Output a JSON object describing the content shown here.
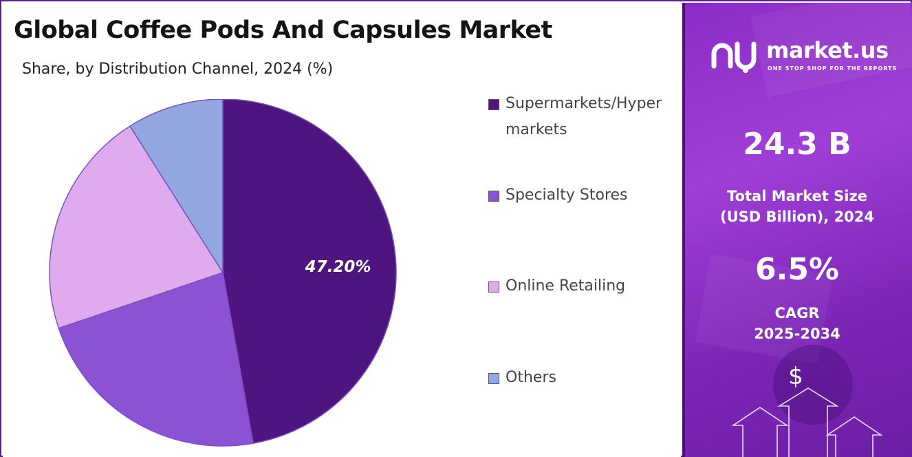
{
  "title": "Global Coffee Pods And Capsules Market",
  "subtitle": "Share, by  Distribution Channel, 2024 (%)",
  "chart_data": {
    "type": "pie",
    "title": "Global Coffee Pods And Capsules Market",
    "subtitle": "Share, by  Distribution Channel, 2024 (%)",
    "categories": [
      "Supermarkets/Hypermarkets",
      "Specialty Stores",
      "Online Retailing",
      "Others"
    ],
    "values": [
      47.2,
      22.6,
      21.2,
      9.0
    ],
    "colors": [
      "#4e1580",
      "#8b52d3",
      "#e0aaee",
      "#93a8e0"
    ],
    "data_labels": [
      "47.20%",
      "",
      "",
      ""
    ],
    "legend_position": "right"
  },
  "sidebar": {
    "logo_text": "market.us",
    "logo_tagline": "ONE STOP SHOP FOR THE REPORTS",
    "market_size_value": "24.3 B",
    "market_size_label_line1": "Total Market Size",
    "market_size_label_line2": "(USD Billion), 2024",
    "cagr_value": "6.5%",
    "cagr_label_line1": "CAGR",
    "cagr_label_line2": "2025-2034",
    "dollar_symbol": "$",
    "background_color": "#8b2cc6"
  }
}
